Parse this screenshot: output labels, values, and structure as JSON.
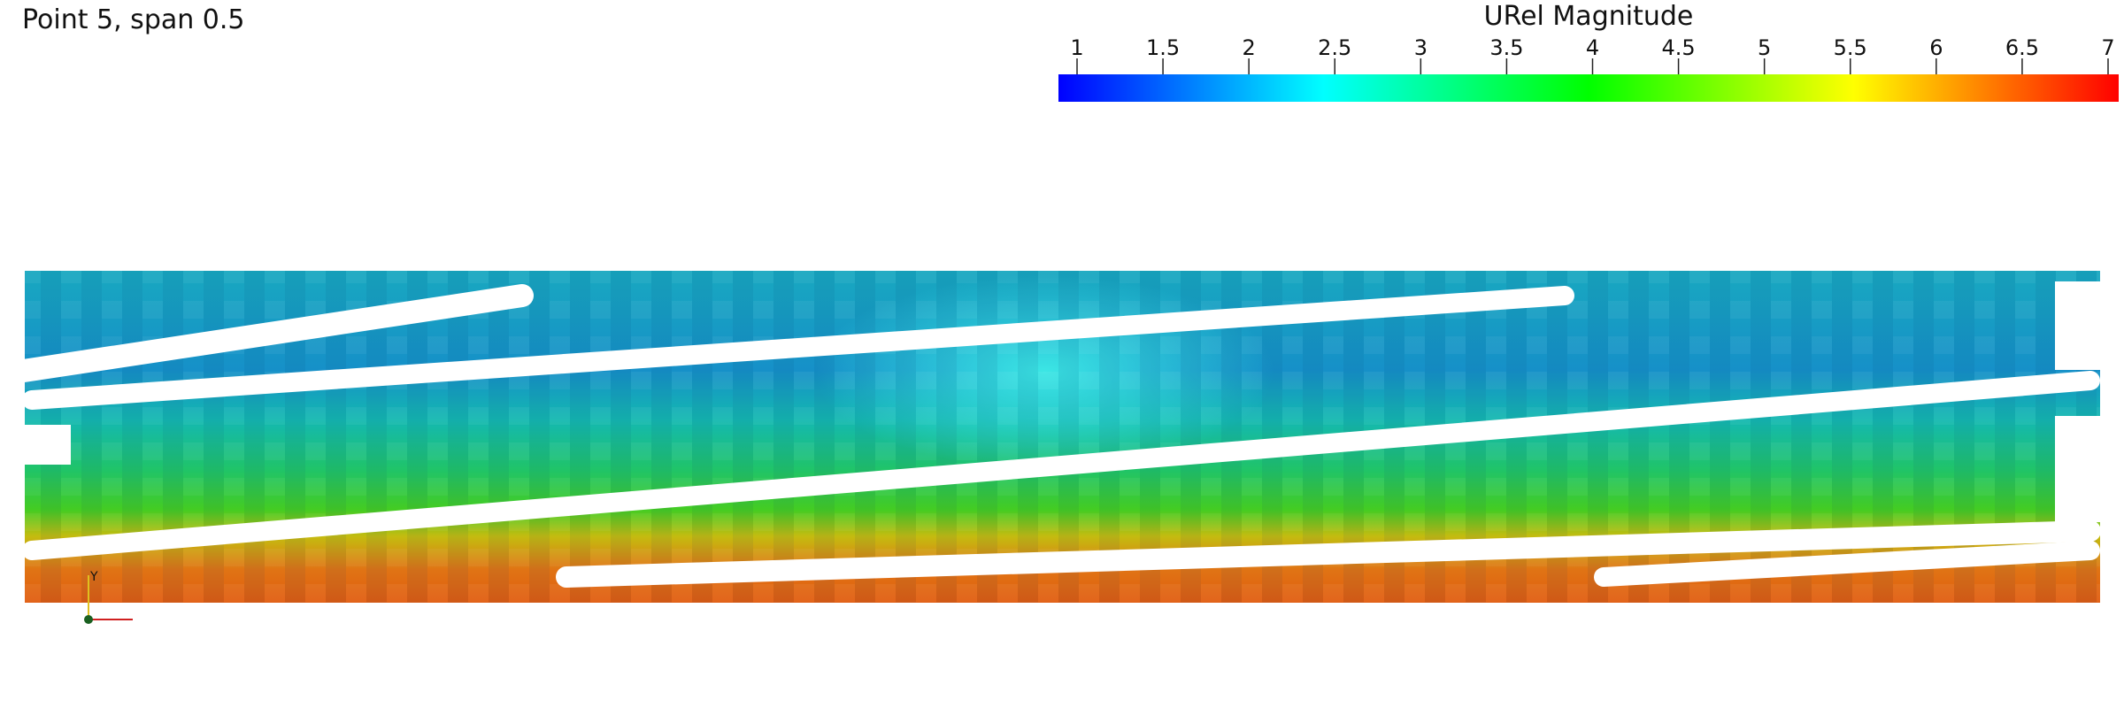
{
  "title": "Point 5, span 0.5",
  "colorbar": {
    "title": "URel Magnitude",
    "range": [
      1,
      7
    ],
    "ticks": [
      1,
      1.5,
      2,
      2.5,
      3,
      3.5,
      4,
      4.5,
      5,
      5.5,
      6,
      6.5,
      7
    ]
  },
  "axes_triad": {
    "y_label": "Y"
  }
}
